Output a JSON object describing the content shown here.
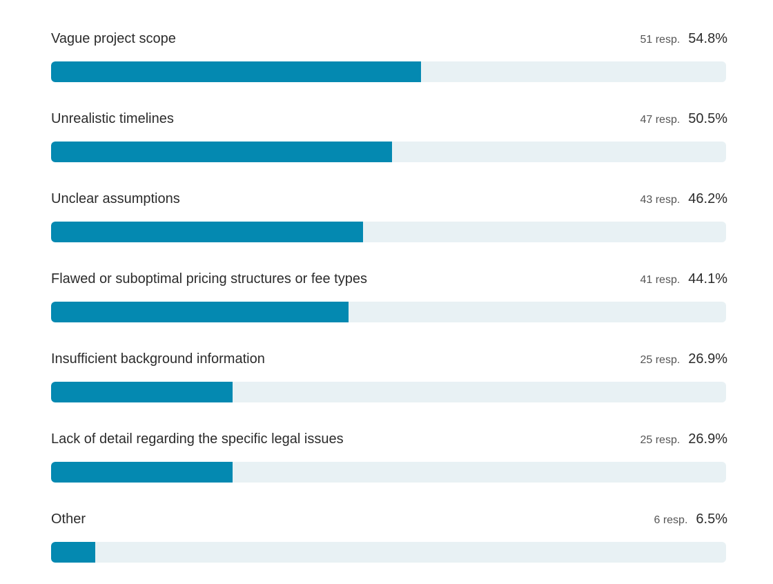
{
  "chart_data": {
    "type": "bar",
    "orientation": "horizontal",
    "categories": [
      "Vague project scope",
      "Unrealistic timelines",
      "Unclear assumptions",
      "Flawed or suboptimal pricing structures or fee types",
      "Insufficient background information",
      "Lack of detail regarding the specific legal issues",
      "Other"
    ],
    "responses": [
      "51 resp.",
      "47 resp.",
      "43 resp.",
      "41 resp.",
      "25 resp.",
      "25 resp.",
      "6 resp."
    ],
    "percent_labels": [
      "54.8%",
      "50.5%",
      "46.2%",
      "44.1%",
      "26.9%",
      "26.9%",
      "6.5%"
    ],
    "values": [
      54.8,
      50.5,
      46.2,
      44.1,
      26.9,
      26.9,
      6.5
    ],
    "xlim": [
      0,
      100
    ],
    "grid": false,
    "colors": {
      "fill": "#0489b1",
      "track": "#e8f1f4"
    }
  }
}
